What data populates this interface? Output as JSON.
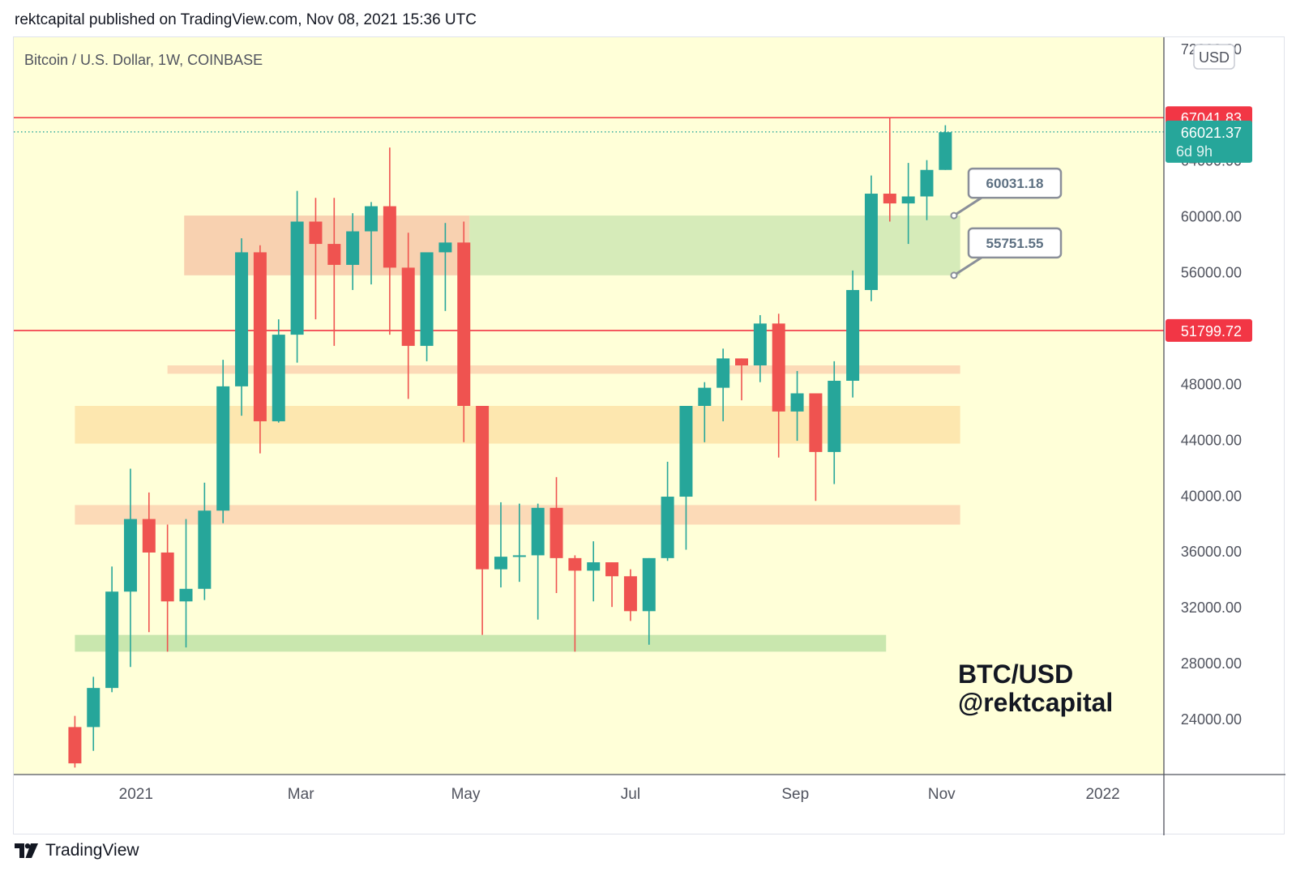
{
  "header": {
    "published_line": "rektcapital published on TradingView.com, Nov 08, 2021 15:36 UTC"
  },
  "footer": {
    "brand": "TradingView"
  },
  "colors": {
    "background": "#ffffd8",
    "up": "#26a69a",
    "down": "#ef5350",
    "resistance_line": "#f23645",
    "text": "#131722",
    "axis_text": "#50535e"
  },
  "chart_data": {
    "type": "candlestick",
    "symbol_line": "Bitcoin / U.S. Dollar, 1W, COINBASE",
    "watermark_lines": [
      "BTC/USD",
      "@rektcapital"
    ],
    "currency_button": "USD",
    "ylim": [
      20000,
      72800
    ],
    "y_ticks": [
      {
        "value": 72000,
        "label": "72000.00"
      },
      {
        "value": 64000,
        "label": "64000.00"
      },
      {
        "value": 60000,
        "label": "60000.00"
      },
      {
        "value": 56000,
        "label": "56000.00"
      },
      {
        "value": 48000,
        "label": "48000.00"
      },
      {
        "value": 44000,
        "label": "44000.00"
      },
      {
        "value": 40000,
        "label": "40000.00"
      },
      {
        "value": 36000,
        "label": "36000.00"
      },
      {
        "value": 32000,
        "label": "32000.00"
      },
      {
        "value": 28000,
        "label": "28000.00"
      },
      {
        "value": 24000,
        "label": "24000.00"
      }
    ],
    "x_ticks": [
      {
        "label": "2021",
        "bar": 3.3
      },
      {
        "label": "Mar",
        "bar": 12.2
      },
      {
        "label": "May",
        "bar": 21.1
      },
      {
        "label": "Jul",
        "bar": 30.0
      },
      {
        "label": "Sep",
        "bar": 38.9
      },
      {
        "label": "Nov",
        "bar": 46.8
      },
      {
        "label": "2022",
        "bar": 55.5
      }
    ],
    "x_start_bar": -3.3,
    "x_end_bar": 58.8,
    "candles": [
      {
        "o": 23400,
        "h": 24200,
        "l": 20500,
        "c": 20800
      },
      {
        "o": 23400,
        "h": 27000,
        "l": 21700,
        "c": 26200
      },
      {
        "o": 26200,
        "h": 34900,
        "l": 25900,
        "c": 33100
      },
      {
        "o": 33100,
        "h": 41900,
        "l": 27700,
        "c": 38300
      },
      {
        "o": 38300,
        "h": 40200,
        "l": 30200,
        "c": 35900
      },
      {
        "o": 35900,
        "h": 37900,
        "l": 28800,
        "c": 32400
      },
      {
        "o": 32400,
        "h": 38300,
        "l": 29100,
        "c": 33300
      },
      {
        "o": 33300,
        "h": 40900,
        "l": 32500,
        "c": 38900
      },
      {
        "o": 38900,
        "h": 49700,
        "l": 38000,
        "c": 47800
      },
      {
        "o": 47800,
        "h": 58400,
        "l": 45700,
        "c": 57400
      },
      {
        "o": 57400,
        "h": 57900,
        "l": 43000,
        "c": 45300
      },
      {
        "o": 45300,
        "h": 52600,
        "l": 45200,
        "c": 51500
      },
      {
        "o": 51500,
        "h": 61800,
        "l": 49500,
        "c": 59600
      },
      {
        "o": 59600,
        "h": 61300,
        "l": 52600,
        "c": 58000
      },
      {
        "o": 58000,
        "h": 61300,
        "l": 50700,
        "c": 56500
      },
      {
        "o": 56500,
        "h": 60200,
        "l": 54700,
        "c": 58900
      },
      {
        "o": 58900,
        "h": 61000,
        "l": 55100,
        "c": 60700
      },
      {
        "o": 60700,
        "h": 64900,
        "l": 51500,
        "c": 56300
      },
      {
        "o": 56300,
        "h": 58800,
        "l": 46900,
        "c": 50700
      },
      {
        "o": 50700,
        "h": 57000,
        "l": 49600,
        "c": 57400
      },
      {
        "o": 57400,
        "h": 59500,
        "l": 53200,
        "c": 58100
      },
      {
        "o": 58100,
        "h": 59600,
        "l": 43800,
        "c": 46400
      },
      {
        "o": 46400,
        "h": 46400,
        "l": 30000,
        "c": 34700
      },
      {
        "o": 34700,
        "h": 39500,
        "l": 33400,
        "c": 35600
      },
      {
        "o": 35600,
        "h": 39400,
        "l": 33800,
        "c": 35700
      },
      {
        "o": 35700,
        "h": 39400,
        "l": 31100,
        "c": 39100
      },
      {
        "o": 39100,
        "h": 41300,
        "l": 33000,
        "c": 35500
      },
      {
        "o": 35500,
        "h": 35700,
        "l": 28800,
        "c": 34600
      },
      {
        "o": 34600,
        "h": 36700,
        "l": 32400,
        "c": 35200
      },
      {
        "o": 35200,
        "h": 35200,
        "l": 32000,
        "c": 34200
      },
      {
        "o": 34200,
        "h": 34700,
        "l": 31000,
        "c": 31700
      },
      {
        "o": 31700,
        "h": 35500,
        "l": 29300,
        "c": 35500
      },
      {
        "o": 35500,
        "h": 42400,
        "l": 35300,
        "c": 39900
      },
      {
        "o": 39900,
        "h": 46200,
        "l": 36100,
        "c": 46400
      },
      {
        "o": 46400,
        "h": 48100,
        "l": 43800,
        "c": 47700
      },
      {
        "o": 47700,
        "h": 50500,
        "l": 45300,
        "c": 49800
      },
      {
        "o": 49800,
        "h": 49800,
        "l": 46800,
        "c": 49300
      },
      {
        "o": 49300,
        "h": 52900,
        "l": 48100,
        "c": 52300
      },
      {
        "o": 52300,
        "h": 53000,
        "l": 42700,
        "c": 46000
      },
      {
        "o": 46000,
        "h": 48900,
        "l": 43900,
        "c": 47300
      },
      {
        "o": 47300,
        "h": 47300,
        "l": 39600,
        "c": 43100
      },
      {
        "o": 43100,
        "h": 49600,
        "l": 40800,
        "c": 48200
      },
      {
        "o": 48200,
        "h": 56100,
        "l": 47000,
        "c": 54700
      },
      {
        "o": 54700,
        "h": 62900,
        "l": 53900,
        "c": 61600
      },
      {
        "o": 61600,
        "h": 67000,
        "l": 59600,
        "c": 60900
      },
      {
        "o": 60900,
        "h": 63800,
        "l": 58000,
        "c": 61400
      },
      {
        "o": 61400,
        "h": 64000,
        "l": 59700,
        "c": 63300
      },
      {
        "o": 63300,
        "h": 66500,
        "l": 63300,
        "c": 66000
      }
    ],
    "zones": [
      {
        "from_bar": 5.9,
        "to_bar": 21.3,
        "low": 55751.55,
        "high": 60031.18,
        "color": "#f7c9a9",
        "opacity": 0.85
      },
      {
        "from_bar": 21.3,
        "to_bar": 47.8,
        "low": 55751.55,
        "high": 60031.18,
        "color": "#cfe8b4",
        "opacity": 0.85
      },
      {
        "from_bar": 5.0,
        "to_bar": 47.8,
        "low": 48700,
        "high": 49300,
        "color": "#fbd3b2",
        "opacity": 0.85
      },
      {
        "from_bar": 0.0,
        "to_bar": 47.8,
        "low": 43700,
        "high": 46400,
        "color": "#fde3a8",
        "opacity": 0.85
      },
      {
        "from_bar": 0.0,
        "to_bar": 47.8,
        "low": 37900,
        "high": 39300,
        "color": "#fbd3b2",
        "opacity": 0.85
      },
      {
        "from_bar": 0.0,
        "to_bar": 43.8,
        "low": 28800,
        "high": 30000,
        "color": "#bfe3a7",
        "opacity": 0.85
      }
    ],
    "horizontal_lines": [
      {
        "value": 67041.83,
        "label": "67041.83"
      },
      {
        "value": 51799.72,
        "label": "51799.72"
      }
    ],
    "current_price": {
      "value": 66021.37,
      "label": "66021.37",
      "countdown": "6d 9h"
    },
    "callouts": [
      {
        "value": 60031.18,
        "label": "60031.18"
      },
      {
        "value": 55751.55,
        "label": "55751.55"
      }
    ]
  }
}
